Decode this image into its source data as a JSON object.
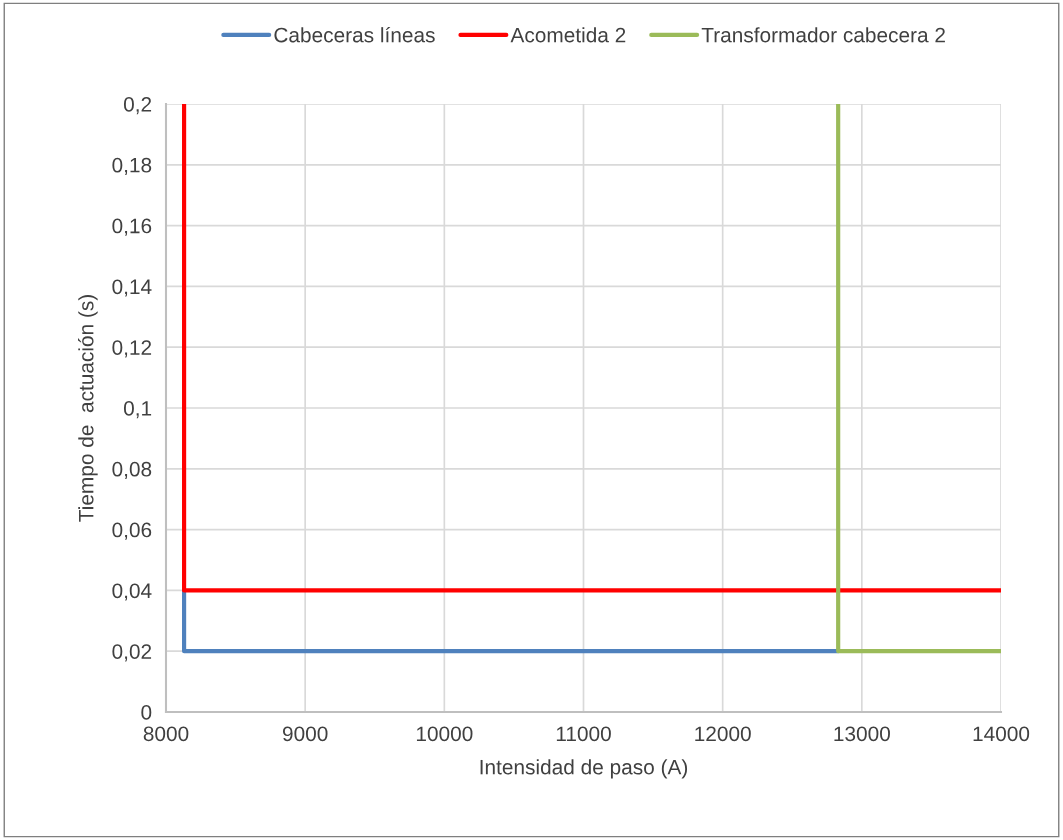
{
  "chart_data": {
    "type": "line",
    "xlabel": "Intensidad de paso (A)",
    "ylabel": "Tiempo de  actuación (s)",
    "series": [
      {
        "name": "Cabeceras líneas",
        "color": "#4f81bd",
        "x": [
          8130,
          8130,
          12830
        ],
        "values": [
          0.04,
          0.02,
          0.02
        ]
      },
      {
        "name": "Acometida 2",
        "color": "#ff0000",
        "x": [
          8130,
          8130,
          14000
        ],
        "values": [
          0.2,
          0.04,
          0.04
        ]
      },
      {
        "name": "Transformador cabecera 2",
        "color": "#9bbb59",
        "x": [
          12830,
          12830,
          14000
        ],
        "values": [
          0.2,
          0.02,
          0.02
        ]
      }
    ],
    "xlim": [
      8000,
      14000
    ],
    "xticks": [
      8000,
      9000,
      10000,
      11000,
      12000,
      13000,
      14000
    ],
    "ylim": [
      0,
      0.2
    ],
    "yticks": [
      0,
      {
        "value": 0.02,
        "label": "0,02"
      },
      {
        "value": 0.04,
        "label": "0,04"
      },
      {
        "value": 0.06,
        "label": "0,06"
      },
      {
        "value": 0.08,
        "label": "0,08"
      },
      {
        "value": 0.1,
        "label": "0,1"
      },
      {
        "value": 0.12,
        "label": "0,12"
      },
      {
        "value": 0.14,
        "label": "0,14"
      },
      {
        "value": 0.16,
        "label": "0,16"
      },
      {
        "value": 0.18,
        "label": "0,18"
      },
      {
        "value": 0.2,
        "label": "0,2"
      }
    ],
    "grid": true,
    "legend": "top",
    "marker": "none",
    "line_style": "solid"
  }
}
